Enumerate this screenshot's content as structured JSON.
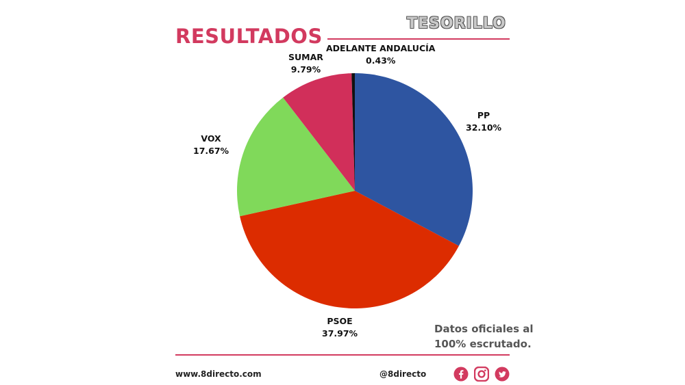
{
  "header": {
    "title": "RESULTADOS",
    "brand": "TESORILLO"
  },
  "note": {
    "line1": "Datos oficiales al",
    "line2": "100% escrutado."
  },
  "footer": {
    "website": "www.8directo.com",
    "handle": "@8directo",
    "icons": [
      "facebook-icon",
      "instagram-icon",
      "twitter-icon"
    ]
  },
  "colors": {
    "accent": "#d23a5f",
    "pp": "#2e55a1",
    "psoe": "#dc2c00",
    "vox": "#80d95a",
    "sumar": "#d12f5a",
    "adelante": "#111111"
  },
  "chart_data": {
    "type": "pie",
    "title": "RESULTADOS",
    "slices": [
      {
        "name": "PP",
        "value": 32.1,
        "value_label": "32.10%",
        "color": "#2e55a1"
      },
      {
        "name": "PSOE",
        "value": 37.97,
        "value_label": "37.97%",
        "color": "#dc2c00"
      },
      {
        "name": "VOX",
        "value": 17.67,
        "value_label": "17.67%",
        "color": "#80d95a"
      },
      {
        "name": "SUMAR",
        "value": 9.79,
        "value_label": "9.79%",
        "color": "#d12f5a"
      },
      {
        "name": "ADELANTE ANDALUCÍA",
        "value": 0.43,
        "value_label": "0.43%",
        "color": "#111111"
      }
    ]
  }
}
